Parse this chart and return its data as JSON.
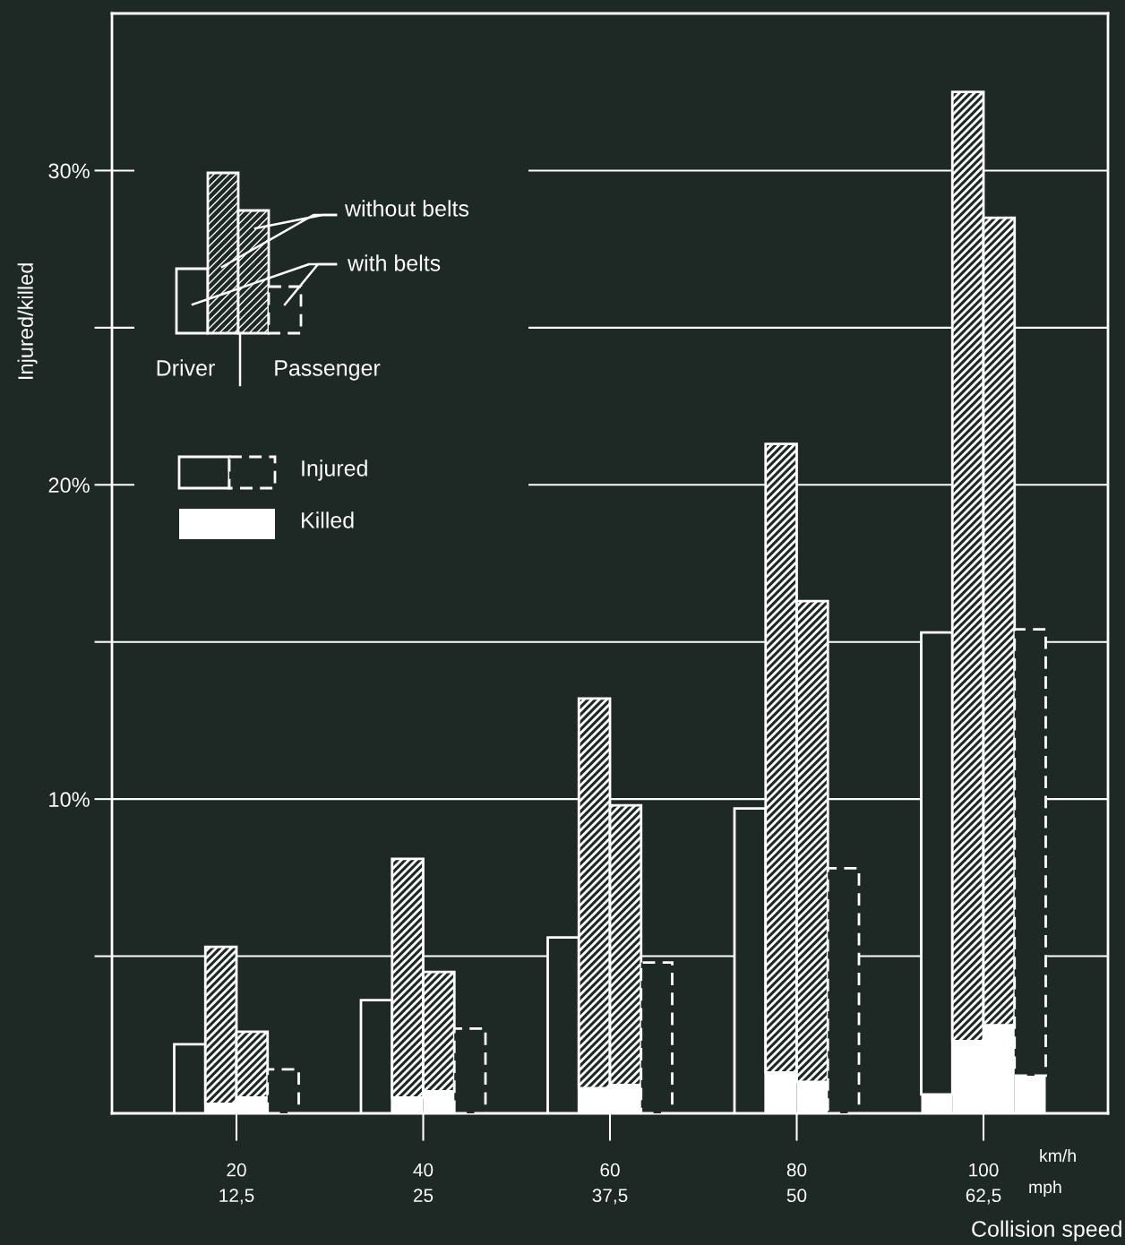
{
  "chart_data": {
    "type": "bar",
    "ylabel": "Injured/killed",
    "xlabel": "Collision speed",
    "categories": [
      null,
      null,
      null,
      null,
      null,
      null,
      null,
      null,
      null,
      null,
      null,
      null,
      null,
      null,
      null,
      null,
      null,
      null,
      null,
      null,
      null,
      null,
      null,
      null,
      null,
      null,
      null,
      null,
      null,
      null,
      null,
      null
    ],
    "series": [
      {
        "color": "#ffffff",
        "values": [
          null,
          null,
          null,
          0.3,
          0.5,
          null,
          null,
          null,
          null,
          0.5,
          0.7,
          null,
          null,
          null,
          null,
          0.8,
          0.9,
          null,
          null,
          null,
          null,
          1.3,
          1.0,
          null,
          null,
          null,
          0.6,
          2.3,
          2.8,
          1.2,
          null,
          null
        ]
      },
      {
        "color": "#ffffff",
        "line_style": "solid",
        "values": [
          null,
          null,
          2.2,
          null,
          null,
          null,
          null,
          null,
          3.6,
          null,
          null,
          null,
          null,
          null,
          5.6,
          null,
          null,
          null,
          null,
          null,
          9.7,
          null,
          null,
          null,
          null,
          null,
          14.7,
          null,
          null,
          null,
          null,
          null
        ]
      },
      {
        "color": "#ffffff",
        "line_style": "solid",
        "values": [
          null,
          null,
          null,
          5.0,
          2.1,
          null,
          null,
          null,
          null,
          7.6,
          3.8,
          null,
          null,
          null,
          null,
          12.4,
          8.9,
          null,
          null,
          null,
          null,
          20.0,
          15.3,
          null,
          null,
          null,
          null,
          30.2,
          25.7,
          null,
          null,
          null
        ]
      },
      {
        "color": "#ffffff",
        "line_style": "dashed",
        "values": [
          null,
          null,
          null,
          null,
          null,
          1.4,
          null,
          null,
          null,
          null,
          null,
          2.7,
          null,
          null,
          null,
          null,
          null,
          4.8,
          null,
          null,
          null,
          null,
          null,
          7.8,
          null,
          null,
          null,
          null,
          null,
          14.2,
          null,
          null
        ]
      }
    ],
    "stacked": true,
    "ylim": [
      0,
      35
    ],
    "yticks": [
      {
        "value": 5,
        "label": null
      },
      {
        "value": 10,
        "label": "10%"
      },
      {
        "value": 15,
        "label": null
      },
      {
        "value": 20,
        "label": "20%"
      },
      {
        "value": 25,
        "label": null
      },
      {
        "value": 30,
        "label": "30%"
      }
    ],
    "grid": "y",
    "annotations": [
      "without belts",
      "with belts",
      "Driver",
      "Passenger",
      "Injured",
      "Killed",
      "20\n12,5",
      "40\n25",
      "60\n37,5",
      "80\n50",
      "100\n62,5",
      "km/h",
      "mph"
    ]
  }
}
